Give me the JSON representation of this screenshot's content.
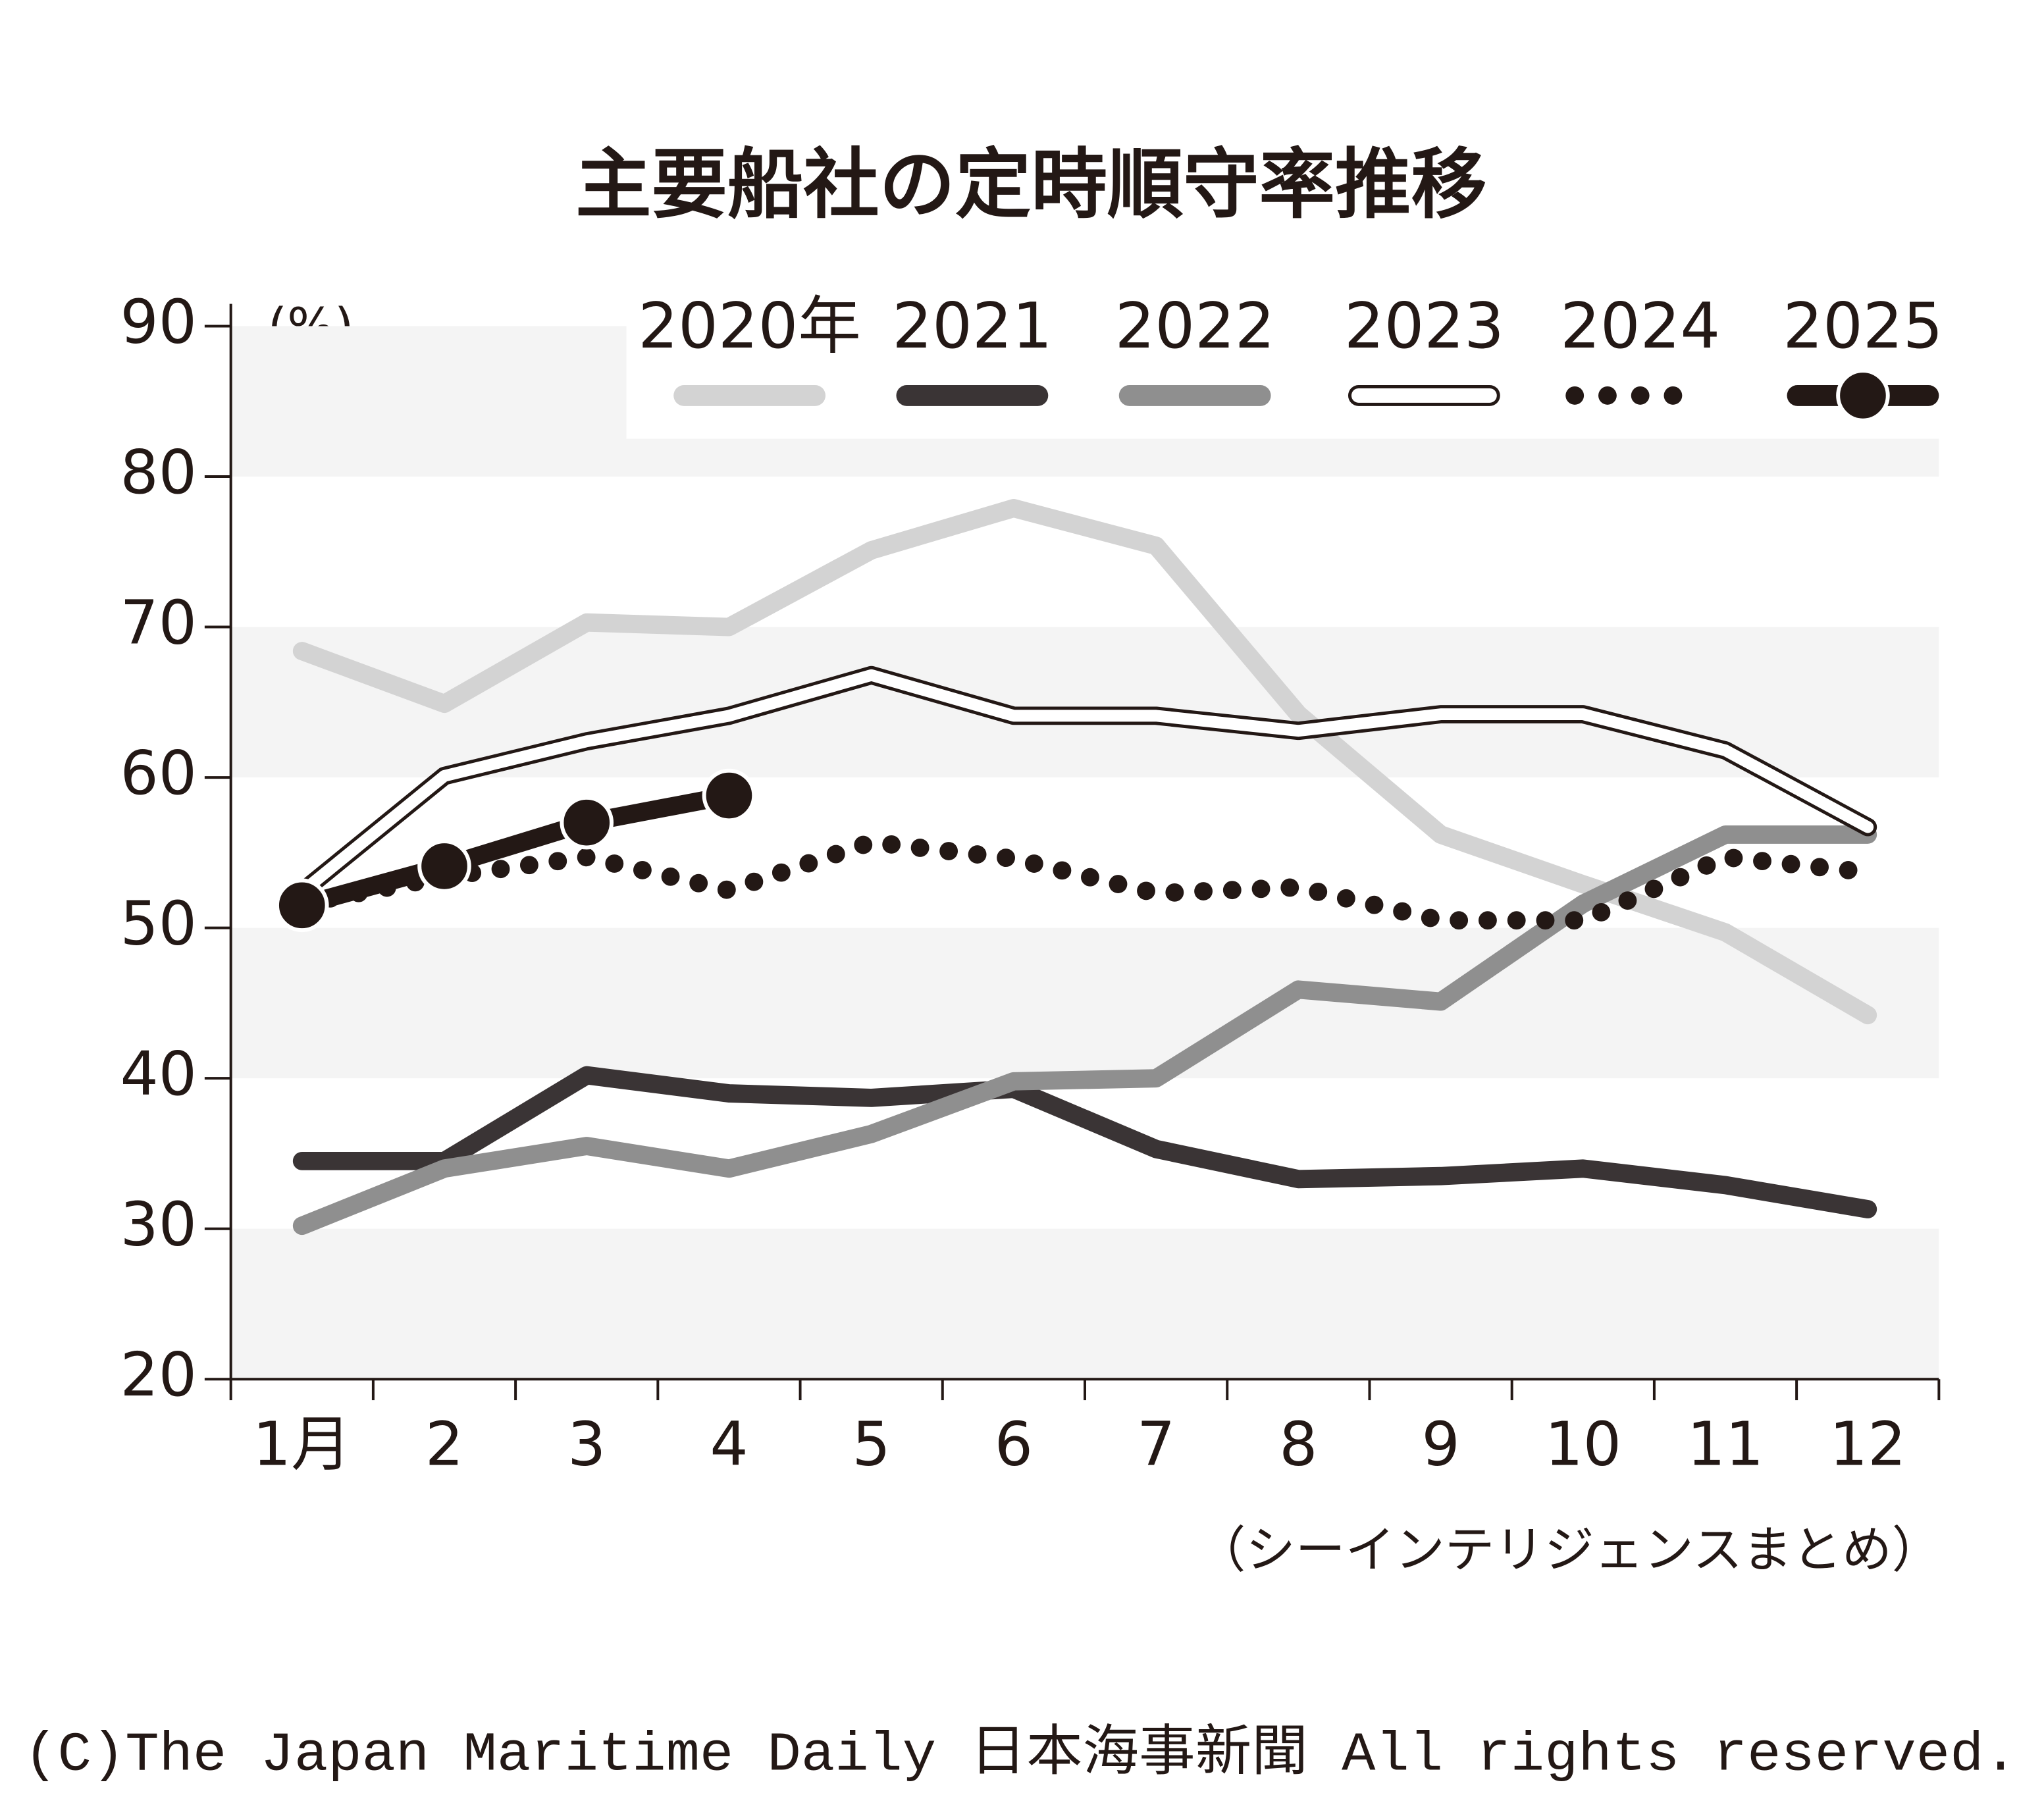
{
  "chart_data": {
    "type": "line",
    "title": "主要船社の定時順守率推移",
    "y_unit_label": "(%)",
    "source": "（シーインテリジェンスまとめ）",
    "copyright": "(C)The Japan Maritime Daily 日本海事新聞 All rights reserved.",
    "categories": [
      "1月",
      "2",
      "3",
      "4",
      "5",
      "6",
      "7",
      "8",
      "9",
      "10",
      "11",
      "12"
    ],
    "ylim": [
      20,
      90
    ],
    "yticks": [
      20,
      30,
      40,
      50,
      60,
      70,
      80,
      90
    ],
    "grid": "bands",
    "legend": "top-right",
    "series": [
      {
        "name": "2020年",
        "color": "#d3d3d3",
        "style": "solid",
        "values": [
          68.4,
          64.9,
          70.3,
          70.0,
          75.1,
          77.9,
          75.4,
          64.2,
          56.2,
          52.9,
          49.7,
          44.2
        ]
      },
      {
        "name": "2021",
        "color": "#3a3435",
        "style": "solid",
        "values": [
          34.5,
          34.5,
          40.2,
          39.0,
          38.7,
          39.3,
          35.3,
          33.3,
          33.5,
          34.0,
          32.9,
          31.3
        ]
      },
      {
        "name": "2022",
        "color": "#8f8f8f",
        "style": "solid",
        "values": [
          30.2,
          34.0,
          35.5,
          34.0,
          36.3,
          39.8,
          40.0,
          45.9,
          45.1,
          51.6,
          56.2,
          56.2
        ]
      },
      {
        "name": "2023",
        "color": "#ffffff",
        "style": "outlined",
        "values": [
          52.4,
          60.1,
          62.4,
          64.1,
          66.8,
          64.1,
          64.1,
          63.1,
          64.2,
          64.2,
          61.8,
          56.7
        ]
      },
      {
        "name": "2024",
        "color": "#231815",
        "style": "dotted",
        "values": [
          51.6,
          53.4,
          54.7,
          52.5,
          55.7,
          54.6,
          52.3,
          52.7,
          50.5,
          50.5,
          54.7,
          53.7
        ]
      },
      {
        "name": "2025",
        "color": "#231815",
        "style": "markers",
        "values": [
          51.5,
          54.1,
          57.0,
          58.8,
          null,
          null,
          null,
          null,
          null,
          null,
          null,
          null
        ]
      }
    ]
  }
}
